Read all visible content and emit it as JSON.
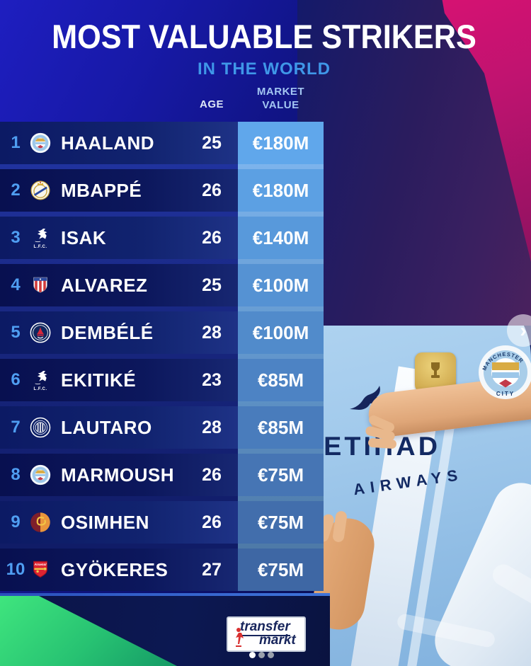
{
  "header": {
    "title": "MOST VALUABLE STRIKERS",
    "subtitle": "IN THE WORLD",
    "col_age": "AGE",
    "col_value_line1": "MARKET",
    "col_value_line2": "VALUE"
  },
  "table": {
    "rows": [
      {
        "rank": "1",
        "club": "Manchester City",
        "badge": "manchester-city-badge",
        "badge_text": "",
        "player": "HAALAND",
        "age": "25",
        "value": "€180M"
      },
      {
        "rank": "2",
        "club": "Real Madrid",
        "badge": "real-madrid-badge",
        "badge_text": "",
        "player": "MBAPPÉ",
        "age": "26",
        "value": "€180M"
      },
      {
        "rank": "3",
        "club": "Liverpool",
        "badge": "liverpool-badge",
        "badge_text": "L.F.C.",
        "player": "ISAK",
        "age": "26",
        "value": "€140M"
      },
      {
        "rank": "4",
        "club": "Atlético Madrid",
        "badge": "atletico-badge",
        "badge_text": "",
        "player": "ALVAREZ",
        "age": "25",
        "value": "€100M"
      },
      {
        "rank": "5",
        "club": "Paris Saint-Germain",
        "badge": "psg-badge",
        "badge_text": "",
        "player": "DEMBÉLÉ",
        "age": "28",
        "value": "€100M"
      },
      {
        "rank": "6",
        "club": "Liverpool",
        "badge": "liverpool-badge",
        "badge_text": "L.F.C.",
        "player": "EKITIKÉ",
        "age": "23",
        "value": "€85M"
      },
      {
        "rank": "7",
        "club": "Inter Milan",
        "badge": "inter-badge",
        "badge_text": "",
        "player": "LAUTARO",
        "age": "28",
        "value": "€85M"
      },
      {
        "rank": "8",
        "club": "Manchester City",
        "badge": "manchester-city-badge",
        "badge_text": "",
        "player": "MARMOUSH",
        "age": "26",
        "value": "€75M"
      },
      {
        "rank": "9",
        "club": "Galatasaray",
        "badge": "galatasaray-badge",
        "badge_text": "",
        "player": "OSIMHEN",
        "age": "26",
        "value": "€75M"
      },
      {
        "rank": "10",
        "club": "Arsenal",
        "badge": "arsenal-badge",
        "badge_text": "Arsenal",
        "player": "GYÖKERES",
        "age": "27",
        "value": "€75M"
      }
    ]
  },
  "photo": {
    "jersey_sponsor_line1": "ETIHAD",
    "jersey_sponsor_line2": "AIRWAYS",
    "chest_badge_line1": "MANCHESTER",
    "chest_badge_line2": "CITY",
    "next_button": "›"
  },
  "footer": {
    "logo_line1": "transfer",
    "logo_line2": "markt",
    "dot_count": 3,
    "active_dot": 0
  },
  "colors": {
    "rank_accent": "#4f9ef2",
    "subtitle_blue": "#3f97e8",
    "value_cell_top": "#60a7eb",
    "value_cell_bottom": "#3e67a4",
    "pink_corner": "#e01173",
    "green_corner": "#2fd96f",
    "jersey_sky": "#9cc6ea",
    "navy_row": "#0c1a64"
  }
}
